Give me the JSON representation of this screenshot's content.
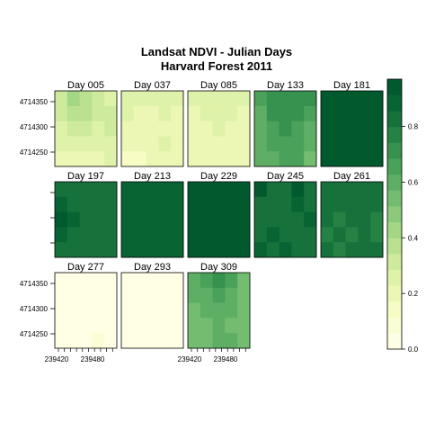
{
  "chart_data": {
    "type": "heatmap",
    "title": "Landsat NDVI - Julian Days",
    "subtitle": "Harvard Forest 2011",
    "layout": {
      "columns": 5,
      "rows": 3
    },
    "panels": [
      {
        "label": "Day 005",
        "values": [
          [
            0.3,
            0.4,
            0.35,
            0.3,
            0.28
          ],
          [
            0.3,
            0.35,
            0.38,
            0.3,
            0.3
          ],
          [
            0.25,
            0.3,
            0.32,
            0.28,
            0.3
          ],
          [
            0.25,
            0.27,
            0.25,
            0.25,
            0.28
          ],
          [
            0.22,
            0.2,
            0.22,
            0.22,
            0.25
          ]
        ]
      },
      {
        "label": "Day 037",
        "values": [
          [
            0.25,
            0.25,
            0.28,
            0.28,
            0.25
          ],
          [
            0.25,
            0.22,
            0.22,
            0.25,
            0.22
          ],
          [
            0.2,
            0.2,
            0.22,
            0.22,
            0.22
          ],
          [
            0.18,
            0.2,
            0.2,
            0.25,
            0.2
          ],
          [
            0.15,
            0.12,
            0.18,
            0.2,
            0.18
          ]
        ]
      },
      {
        "label": "Day 085",
        "values": [
          [
            0.25,
            0.28,
            0.25,
            0.25,
            0.25
          ],
          [
            0.22,
            0.25,
            0.28,
            0.25,
            0.22
          ],
          [
            0.22,
            0.22,
            0.25,
            0.22,
            0.22
          ],
          [
            0.2,
            0.2,
            0.22,
            0.2,
            0.2
          ],
          [
            0.18,
            0.2,
            0.2,
            0.2,
            0.18
          ]
        ]
      },
      {
        "label": "Day 133",
        "values": [
          [
            0.68,
            0.72,
            0.72,
            0.7,
            0.7
          ],
          [
            0.62,
            0.7,
            0.7,
            0.7,
            0.68
          ],
          [
            0.62,
            0.68,
            0.7,
            0.68,
            0.6
          ],
          [
            0.58,
            0.65,
            0.68,
            0.66,
            0.6
          ],
          [
            0.58,
            0.62,
            0.68,
            0.65,
            0.55
          ]
        ]
      },
      {
        "label": "Day 181",
        "values": [
          [
            0.95,
            0.95,
            0.95,
            0.95,
            0.95
          ],
          [
            0.95,
            0.95,
            0.95,
            0.95,
            0.95
          ],
          [
            0.95,
            0.95,
            0.95,
            0.95,
            0.95
          ],
          [
            0.95,
            0.95,
            0.95,
            0.95,
            0.95
          ],
          [
            0.95,
            0.95,
            0.95,
            0.95,
            0.95
          ]
        ]
      },
      {
        "label": "Day 197",
        "values": [
          [
            0.85,
            0.85,
            0.85,
            0.85,
            0.85
          ],
          [
            0.86,
            0.85,
            0.85,
            0.85,
            0.85
          ],
          [
            0.95,
            0.86,
            0.85,
            0.85,
            0.85
          ],
          [
            0.86,
            0.85,
            0.85,
            0.85,
            0.85
          ],
          [
            0.85,
            0.85,
            0.85,
            0.85,
            0.85
          ]
        ]
      },
      {
        "label": "Day 213",
        "values": [
          [
            0.88,
            0.88,
            0.88,
            0.88,
            0.88
          ],
          [
            0.88,
            0.88,
            0.88,
            0.88,
            0.88
          ],
          [
            0.88,
            0.88,
            0.88,
            0.88,
            0.88
          ],
          [
            0.88,
            0.88,
            0.88,
            0.88,
            0.88
          ],
          [
            0.88,
            0.88,
            0.88,
            0.88,
            0.88
          ]
        ]
      },
      {
        "label": "Day 229",
        "values": [
          [
            0.92,
            0.92,
            0.92,
            0.92,
            0.92
          ],
          [
            0.92,
            0.92,
            0.92,
            0.92,
            0.92
          ],
          [
            0.92,
            0.92,
            0.92,
            0.92,
            0.92
          ],
          [
            0.92,
            0.92,
            0.92,
            0.92,
            0.92
          ],
          [
            0.92,
            0.92,
            0.92,
            0.92,
            0.92
          ]
        ]
      },
      {
        "label": "Day 245",
        "values": [
          [
            0.95,
            0.85,
            0.85,
            0.95,
            0.85
          ],
          [
            0.85,
            0.85,
            0.85,
            0.9,
            0.85
          ],
          [
            0.85,
            0.85,
            0.85,
            0.85,
            0.9
          ],
          [
            0.85,
            0.9,
            0.85,
            0.85,
            0.85
          ],
          [
            0.9,
            0.85,
            0.9,
            0.85,
            0.85
          ]
        ]
      },
      {
        "label": "Day 261",
        "values": [
          [
            0.85,
            0.85,
            0.85,
            0.85,
            0.85
          ],
          [
            0.8,
            0.85,
            0.8,
            0.8,
            0.8
          ],
          [
            0.8,
            0.78,
            0.8,
            0.8,
            0.78
          ],
          [
            0.78,
            0.8,
            0.78,
            0.8,
            0.78
          ],
          [
            0.8,
            0.78,
            0.8,
            0.8,
            0.8
          ]
        ]
      },
      {
        "label": "Day 277",
        "values": [
          [
            0.05,
            0.05,
            0.05,
            0.05,
            0.05
          ],
          [
            0.05,
            0.05,
            0.05,
            0.05,
            0.05
          ],
          [
            0.05,
            0.05,
            0.05,
            0.05,
            0.05
          ],
          [
            0.05,
            0.05,
            0.05,
            0.05,
            0.05
          ],
          [
            0.05,
            0.05,
            0.05,
            0.1,
            0.05
          ]
        ]
      },
      {
        "label": "Day 293",
        "values": [
          [
            0.04,
            0.04,
            0.04,
            0.04,
            0.04
          ],
          [
            0.04,
            0.04,
            0.04,
            0.04,
            0.04
          ],
          [
            0.04,
            0.04,
            0.04,
            0.04,
            0.04
          ],
          [
            0.04,
            0.04,
            0.04,
            0.04,
            0.04
          ],
          [
            0.04,
            0.04,
            0.04,
            0.04,
            0.04
          ]
        ]
      },
      {
        "label": "Day 309",
        "values": [
          [
            0.62,
            0.65,
            0.7,
            0.68,
            0.55
          ],
          [
            0.58,
            0.62,
            0.65,
            0.62,
            0.52
          ],
          [
            0.55,
            0.58,
            0.62,
            0.6,
            0.55
          ],
          [
            0.55,
            0.52,
            0.58,
            0.55,
            0.52
          ],
          [
            0.52,
            0.55,
            0.6,
            0.58,
            0.55
          ]
        ]
      }
    ],
    "y_ticks": [
      "4714350",
      "4714300",
      "4714250"
    ],
    "x_ticks": [
      "239420",
      "239480"
    ],
    "colorbar": {
      "range": [
        0,
        0.97
      ],
      "ticks": [
        0.0,
        0.2,
        0.4,
        0.6,
        0.8
      ],
      "tick_labels": [
        "0.0",
        "0.2",
        "0.4",
        "0.6",
        "0.8"
      ],
      "colors": [
        "#ffffe5",
        "#fbfdd4",
        "#f7fcc4",
        "#ecf7b6",
        "#dff2a9",
        "#cdea9d",
        "#b9e190",
        "#a3d685",
        "#8cc97b",
        "#74bd70",
        "#5eaf65",
        "#4aa15a",
        "#37914f",
        "#268144",
        "#16723a",
        "#086432",
        "#005a2e"
      ]
    }
  }
}
